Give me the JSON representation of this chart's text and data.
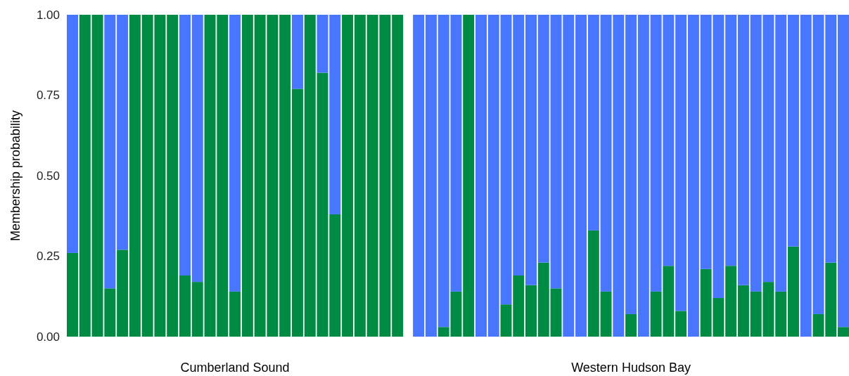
{
  "chart_data": [
    {
      "type": "bar",
      "stacked": true,
      "xlabel": "Cumberland Sound",
      "ylabel": "Membership probability",
      "ylim": [
        0,
        1
      ],
      "yticks": [
        {
          "value": 0,
          "label": "0.00"
        },
        {
          "value": 0.25,
          "label": "0.25"
        },
        {
          "value": 0.5,
          "label": "0.50"
        },
        {
          "value": 0.75,
          "label": "0.75"
        },
        {
          "value": 1,
          "label": "1.00"
        }
      ],
      "tick_labels": "y",
      "categories": [
        null,
        null,
        null,
        null,
        null,
        null,
        null,
        null,
        null,
        null,
        null,
        null,
        null,
        null,
        null,
        null,
        null,
        null,
        null,
        null,
        null,
        null,
        null,
        null,
        null,
        null,
        null
      ],
      "series": [
        {
          "color": "#008b45",
          "values": [
            0.26,
            1,
            1,
            0.15,
            0.27,
            1,
            1,
            1,
            1,
            0.19,
            0.17,
            1,
            1,
            0.14,
            1,
            1,
            1,
            1,
            0.77,
            1,
            0.82,
            0.38,
            1,
            1,
            1,
            1,
            1
          ]
        },
        {
          "color": "#4876ff",
          "values": [
            0.74,
            0,
            0,
            0.85,
            0.73,
            0,
            0,
            0,
            0,
            0.81,
            0.83,
            0,
            0,
            0.86,
            0,
            0,
            0,
            0,
            0.23,
            0,
            0.18,
            0.62,
            0,
            0,
            0,
            0,
            0
          ]
        }
      ]
    },
    {
      "type": "bar",
      "stacked": true,
      "xlabel": "Western Hudson Bay",
      "ylim": [
        0,
        1
      ],
      "tick_labels": false,
      "categories": [
        null,
        null,
        null,
        null,
        null,
        null,
        null,
        null,
        null,
        null,
        null,
        null,
        null,
        null,
        null,
        null,
        null,
        null,
        null,
        null,
        null,
        null,
        null,
        null,
        null,
        null,
        null,
        null,
        null,
        null,
        null,
        null,
        null,
        null,
        null
      ],
      "series": [
        {
          "color": "#008b45",
          "values": [
            0,
            0,
            0.03,
            0.14,
            1,
            0,
            0,
            0.1,
            0.19,
            0.16,
            0.23,
            0.15,
            0,
            0,
            0.33,
            0.14,
            0,
            0.07,
            0,
            0.14,
            0.22,
            0.08,
            0,
            0.21,
            0.12,
            0.22,
            0.16,
            0.14,
            0.17,
            0.14,
            0.28,
            0,
            0.07,
            0.23,
            0.03
          ]
        },
        {
          "color": "#4876ff",
          "values": [
            1,
            1,
            0.97,
            0.86,
            0,
            1,
            1,
            0.9,
            0.81,
            0.84,
            0.77,
            0.85,
            1,
            1,
            0.67,
            0.86,
            1,
            0.93,
            1,
            0.86,
            0.78,
            0.92,
            1,
            0.79,
            0.88,
            0.78,
            0.84,
            0.86,
            0.83,
            0.86,
            0.72,
            1,
            0.93,
            0.77,
            0.97
          ]
        }
      ]
    }
  ]
}
